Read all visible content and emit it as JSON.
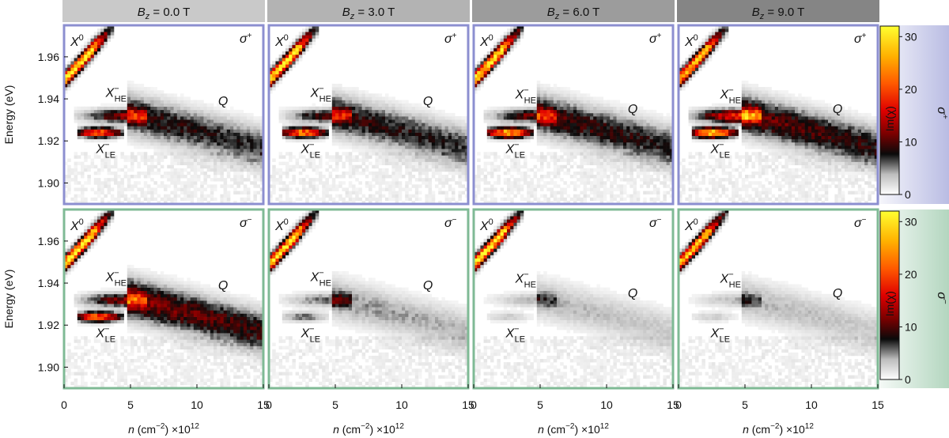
{
  "chart_data": {
    "type": "heatmap",
    "column_headers": [
      "B_z = 0.0 T",
      "B_z = 3.0 T",
      "B_z = 6.0 T",
      "B_z = 9.0 T"
    ],
    "field_values_T": [
      0.0,
      3.0,
      6.0,
      9.0
    ],
    "field_unit": "T",
    "rows": [
      {
        "name": "σ+",
        "label": "σ+",
        "tint": "#b9bce3"
      },
      {
        "name": "σ−",
        "label": "σ−",
        "tint": "#b3d6bf"
      }
    ],
    "xlabel": "n (cm−2) ×10^12",
    "ylabel": "Energy (eV)",
    "xlim": [
      0,
      15
    ],
    "ylim": [
      1.89,
      1.975
    ],
    "xticks": [
      0,
      5,
      10,
      15
    ],
    "yticks": [
      1.9,
      1.92,
      1.94,
      1.96
    ],
    "colorbar": {
      "label": "Im(χ)",
      "ticks": [
        0,
        10,
        20,
        30
      ],
      "range": [
        0,
        32
      ]
    },
    "labels": {
      "X0": "X",
      "X0_sup": "0",
      "XHE": "X",
      "XHE_sup": "−",
      "XHE_sub": "HE",
      "XLE": "X",
      "XLE_sup": "−",
      "XLE_sub": "LE",
      "Q": "Q"
    },
    "features": {
      "X0": {
        "n": [
          0.2,
          3.5
        ],
        "E": [
          1.95,
          1.973
        ],
        "peak": 32
      },
      "XHE": {
        "n": [
          1.2,
          5.8
        ],
        "E": 1.932
      },
      "XLE": {
        "n": [
          1.2,
          4.0
        ],
        "E": 1.924
      },
      "Q": {
        "n": [
          5.5,
          15
        ],
        "E": [
          1.932,
          1.917
        ]
      }
    },
    "amplitudes": [
      {
        "field": 0.0,
        "pol": "σ+",
        "X0": 31,
        "XHE": 12,
        "XLE": 22,
        "Q": 9
      },
      {
        "field": 3.0,
        "pol": "σ+",
        "X0": 30,
        "XHE": 10,
        "XLE": 24,
        "Q": 9
      },
      {
        "field": 6.0,
        "pol": "σ+",
        "X0": 31,
        "XHE": 11,
        "XLE": 27,
        "Q": 10
      },
      {
        "field": 9.0,
        "pol": "σ+",
        "X0": 28,
        "XHE": 18,
        "XLE": 28,
        "Q": 11
      },
      {
        "field": 0.0,
        "pol": "σ−",
        "X0": 31,
        "XHE": 12,
        "XLE": 22,
        "Q": 12
      },
      {
        "field": 3.0,
        "pol": "σ−",
        "X0": 30,
        "XHE": 6,
        "XLE": 6,
        "Q": 5
      },
      {
        "field": 6.0,
        "pol": "σ−",
        "X0": 31,
        "XHE": 4,
        "XLE": 3,
        "Q": 4
      },
      {
        "field": 9.0,
        "pol": "σ−",
        "X0": 28,
        "XHE": 4,
        "XLE": 3,
        "Q": 4
      }
    ]
  }
}
